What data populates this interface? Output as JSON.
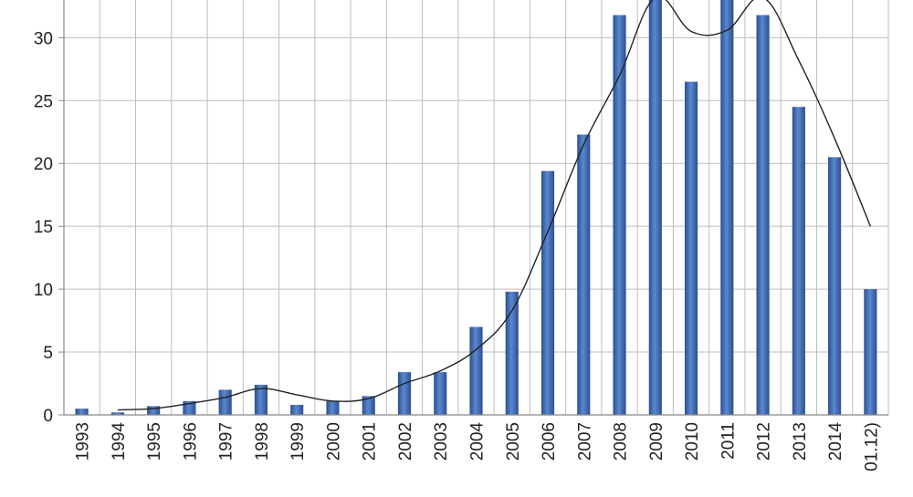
{
  "chart_data": {
    "type": "bar",
    "categories": [
      "1993",
      "1994",
      "1995",
      "1996",
      "1997",
      "1998",
      "1999",
      "2000",
      "2001",
      "2002",
      "2003",
      "2004",
      "2005",
      "2006",
      "2007",
      "2008",
      "2009",
      "2010",
      "2011",
      "2012",
      "2013",
      "2014",
      "01.12)"
    ],
    "series": [
      {
        "type": "bar",
        "values": [
          0.5,
          0.2,
          0.7,
          1.1,
          2.0,
          2.4,
          0.8,
          1.1,
          1.5,
          3.4,
          3.4,
          7.0,
          9.8,
          19.4,
          22.3,
          31.8,
          33.4,
          26.5,
          33.4,
          31.8,
          24.5,
          20.5,
          10.0
        ],
        "color": "#3f6db3"
      },
      {
        "type": "line",
        "values": [
          null,
          0.4,
          0.5,
          0.9,
          1.4,
          2.1,
          1.6,
          1.1,
          1.3,
          2.5,
          3.5,
          5.2,
          8.3,
          14.6,
          21.5,
          27.0,
          33.2,
          30.5,
          30.6,
          33.2,
          28.2,
          22.0,
          15.0
        ],
        "color": "#222222"
      }
    ],
    "yticks": [
      0,
      5,
      10,
      15,
      20,
      25,
      30
    ],
    "ylim": [
      0,
      33
    ],
    "grid": true,
    "legend": "none"
  }
}
